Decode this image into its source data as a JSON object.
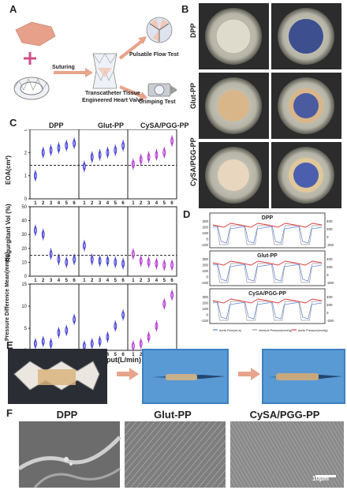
{
  "panels": {
    "a": "A",
    "b": "B",
    "c": "C",
    "d": "D",
    "e": "E",
    "f": "F"
  },
  "panel_a": {
    "suturing": "Suturing",
    "valve_label": "Transcatheter Tissue\nEngineered Heart Valve",
    "pulsatile": "Pulsatile Flow Test",
    "crimping": "Crimping Test"
  },
  "panel_b": {
    "rows": [
      "DPP",
      "Glut-PP",
      "CySA/PGG-PP"
    ]
  },
  "panel_c": {
    "groups": [
      "DPP",
      "Glut-PP",
      "CySA/PGG-PP"
    ],
    "ylabels": [
      "EOA(cm²)",
      "Regurgitant Vol (%)",
      "Pressure Difference Mean(mmHg)"
    ],
    "xlabel": "Cardiac Output(L/min)",
    "xticks": [
      "1",
      "2",
      "3",
      "4",
      "5",
      "6"
    ],
    "eoa_yticks": [
      "0",
      "1",
      "2",
      "3"
    ],
    "reg_yticks": [
      "0",
      "10",
      "20",
      "30",
      "40",
      "50"
    ],
    "pd_yticks": [
      "0",
      "5",
      "10",
      "15"
    ]
  },
  "chart_data": [
    {
      "type": "violin",
      "ylabel": "EOA(cm²)",
      "ylim": [
        0,
        3
      ],
      "reference_line": 1.45,
      "categories": [
        "1",
        "2",
        "3",
        "4",
        "5",
        "6"
      ],
      "series": [
        {
          "name": "DPP",
          "values": [
            1.0,
            2.0,
            2.1,
            2.2,
            2.3,
            2.4
          ]
        },
        {
          "name": "Glut-PP",
          "values": [
            1.4,
            1.8,
            1.9,
            2.0,
            2.1,
            2.3
          ]
        },
        {
          "name": "CySA/PGG-PP",
          "values": [
            1.5,
            1.7,
            1.8,
            1.9,
            2.0,
            2.5
          ]
        }
      ]
    },
    {
      "type": "violin",
      "ylabel": "Regurgitant Vol (%)",
      "ylim": [
        0,
        50
      ],
      "reference_line": 15,
      "categories": [
        "1",
        "2",
        "3",
        "4",
        "5",
        "6"
      ],
      "series": [
        {
          "name": "DPP",
          "values": [
            33,
            30,
            16,
            12,
            10,
            12
          ]
        },
        {
          "name": "Glut-PP",
          "values": [
            22,
            12,
            11,
            11,
            10,
            9
          ]
        },
        {
          "name": "CySA/PGG-PP",
          "values": [
            16,
            11,
            10,
            9,
            8,
            8
          ]
        }
      ]
    },
    {
      "type": "violin",
      "ylabel": "Pressure Difference Mean(mmHg)",
      "ylim": [
        0,
        15
      ],
      "categories": [
        "1",
        "2",
        "3",
        "4",
        "5",
        "6"
      ],
      "series": [
        {
          "name": "DPP",
          "values": [
            1.5,
            2,
            1.5,
            4,
            4.5,
            7
          ]
        },
        {
          "name": "Glut-PP",
          "values": [
            1,
            1.5,
            2,
            3,
            5.5,
            8
          ]
        },
        {
          "name": "CySA/PGG-PP",
          "values": [
            1,
            1.5,
            3,
            5.5,
            10.5,
            12.5
          ]
        }
      ]
    }
  ],
  "panel_d": {
    "titles": [
      "DPP",
      "Glut-PP",
      "CySA/PGG-PP"
    ],
    "left_ticks": [
      "300",
      "200",
      "100",
      "0",
      "-100"
    ],
    "right_ticks": [
      "400",
      "200",
      "0",
      "-200"
    ],
    "legend": [
      "Aortic Flow(mL/s)",
      "Ventricle Pressure(mmHg)",
      "Aortic Pressure(mmHg)"
    ]
  },
  "panel_f": {
    "titles": [
      "DPP",
      "Glut-PP",
      "CySA/PGG-PP"
    ],
    "scale": "10μm"
  },
  "colors": {
    "violin": "#3a3ad0",
    "violin_mag": "#b030d0",
    "flow": "#5a7fd8",
    "vent": "#9a9a9a",
    "aortic": "#e03a3a",
    "arrow": "#e8a48a"
  }
}
